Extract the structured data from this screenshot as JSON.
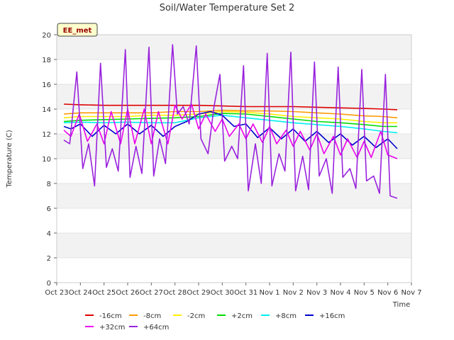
{
  "chart_data": {
    "type": "line",
    "title": "Soil/Water Temperature Set 2",
    "xlabel": "Time",
    "ylabel": "Temperature (C)",
    "ylim": [
      0,
      20
    ],
    "yticks": [
      0,
      2,
      4,
      6,
      8,
      10,
      12,
      14,
      16,
      18,
      20
    ],
    "xlim": [
      0,
      15
    ],
    "xtick_labels": [
      "Oct 23",
      "Oct 24",
      "Oct 25",
      "Oct 26",
      "Oct 27",
      "Oct 28",
      "Oct 29",
      "Oct 30",
      "Oct 31",
      "Nov 1",
      "Nov 2",
      "Nov 3",
      "Nov 4",
      "Nov 5",
      "Nov 6",
      "Nov 7"
    ],
    "badge": "EE_met",
    "background_bands": "alternating light grey",
    "legend_position": "bottom",
    "series": [
      {
        "name": "-16cm",
        "color": "#dd0000",
        "x": [
          0.3,
          1,
          2,
          3,
          4,
          5,
          6,
          7,
          8,
          9,
          10,
          11,
          12,
          13,
          13.8,
          14.4
        ],
        "y": [
          14.4,
          14.35,
          14.3,
          14.3,
          14.3,
          14.3,
          14.3,
          14.25,
          14.2,
          14.2,
          14.2,
          14.15,
          14.1,
          14.05,
          14.0,
          13.95
        ]
      },
      {
        "name": "-8cm",
        "color": "#ff9900",
        "x": [
          0.3,
          1,
          2,
          3,
          4,
          5,
          6,
          7,
          8,
          9,
          10,
          11,
          12,
          13,
          13.8,
          14.4
        ],
        "y": [
          13.6,
          13.7,
          13.7,
          13.7,
          13.7,
          13.8,
          13.8,
          13.9,
          13.85,
          13.85,
          13.8,
          13.7,
          13.6,
          13.45,
          13.4,
          13.3
        ]
      },
      {
        "name": "-2cm",
        "color": "#ffee00",
        "x": [
          0.3,
          1,
          2,
          3,
          4,
          5,
          6,
          7,
          8,
          9,
          10,
          11,
          12,
          13,
          13.8,
          14.4
        ],
        "y": [
          13.3,
          13.4,
          13.4,
          13.4,
          13.5,
          13.5,
          13.6,
          13.8,
          13.75,
          13.6,
          13.4,
          13.3,
          13.2,
          13.0,
          12.9,
          12.9
        ]
      },
      {
        "name": "+2cm",
        "color": "#00dd00",
        "x": [
          0.3,
          1,
          2,
          3,
          4,
          5,
          6,
          7,
          8,
          9,
          10,
          11,
          12,
          13,
          13.8,
          14.4
        ],
        "y": [
          13.0,
          13.1,
          13.15,
          13.2,
          13.25,
          13.3,
          13.4,
          13.65,
          13.6,
          13.4,
          13.2,
          13.0,
          12.9,
          12.75,
          12.6,
          12.6
        ]
      },
      {
        "name": "+8cm",
        "color": "#00eeee",
        "x": [
          0.3,
          1,
          2,
          3,
          4,
          5,
          6,
          7,
          8,
          9,
          10,
          11,
          12,
          13,
          13.8,
          14.4
        ],
        "y": [
          12.9,
          12.95,
          12.9,
          12.95,
          12.9,
          12.9,
          13.3,
          13.5,
          13.3,
          13.1,
          12.9,
          12.75,
          12.6,
          12.4,
          12.2,
          12.1
        ]
      },
      {
        "name": "+16cm",
        "color": "#0000cc",
        "x": [
          0.3,
          0.6,
          1,
          1.5,
          2,
          2.5,
          3,
          3.5,
          4,
          4.5,
          5,
          5.5,
          6,
          6.5,
          7,
          7.5,
          8,
          8.5,
          9,
          9.5,
          10,
          10.5,
          11,
          11.5,
          12,
          12.5,
          13,
          13.5,
          14,
          14.4
        ],
        "y": [
          12.6,
          12.4,
          12.8,
          11.8,
          12.7,
          12.0,
          12.8,
          12.0,
          12.7,
          11.8,
          12.6,
          13.0,
          13.6,
          13.8,
          13.5,
          12.6,
          12.8,
          11.7,
          12.5,
          11.6,
          12.4,
          11.4,
          12.2,
          11.3,
          12.0,
          11.1,
          11.8,
          10.9,
          11.6,
          10.8
        ]
      },
      {
        "name": "+32cm",
        "color": "#ee00ee",
        "x": [
          0.3,
          0.6,
          0.95,
          1.3,
          1.7,
          2.0,
          2.3,
          2.7,
          3.0,
          3.3,
          3.7,
          4.0,
          4.3,
          4.7,
          5.0,
          5.3,
          5.7,
          6.0,
          6.3,
          6.7,
          7.0,
          7.3,
          7.7,
          8.0,
          8.3,
          8.7,
          9.0,
          9.3,
          9.7,
          10.0,
          10.3,
          10.7,
          11.0,
          11.3,
          11.7,
          12.0,
          12.3,
          12.7,
          13.0,
          13.3,
          13.7,
          14.0,
          14.4
        ],
        "y": [
          12.3,
          11.8,
          13.6,
          11.4,
          12.8,
          11.2,
          13.8,
          11.2,
          14.0,
          11.2,
          14.0,
          11.2,
          13.8,
          11.2,
          14.3,
          13.2,
          14.4,
          12.4,
          13.6,
          12.2,
          13.2,
          11.8,
          12.8,
          11.6,
          12.8,
          11.3,
          12.6,
          11.2,
          12.3,
          11.0,
          12.2,
          10.7,
          12.0,
          10.4,
          11.8,
          10.3,
          11.6,
          10.1,
          11.4,
          10.1,
          12.2,
          10.3,
          10.0
        ]
      },
      {
        "name": "+64cm",
        "color": "#9922dd",
        "x": [
          0.3,
          0.55,
          0.85,
          1.1,
          1.35,
          1.6,
          1.85,
          2.1,
          2.35,
          2.6,
          2.9,
          3.1,
          3.35,
          3.6,
          3.9,
          4.1,
          4.35,
          4.6,
          4.9,
          5.1,
          5.35,
          5.6,
          5.9,
          6.1,
          6.4,
          6.65,
          6.9,
          7.1,
          7.4,
          7.65,
          7.9,
          8.1,
          8.4,
          8.65,
          8.9,
          9.1,
          9.4,
          9.65,
          9.9,
          10.1,
          10.4,
          10.65,
          10.9,
          11.1,
          11.4,
          11.65,
          11.9,
          12.1,
          12.4,
          12.65,
          12.9,
          13.1,
          13.4,
          13.65,
          13.9,
          14.1,
          14.4
        ],
        "y": [
          11.5,
          11.2,
          17.0,
          9.2,
          11.2,
          7.8,
          17.7,
          9.3,
          10.8,
          9.0,
          18.8,
          8.5,
          11.0,
          8.8,
          19.0,
          8.6,
          11.6,
          9.6,
          19.2,
          13.6,
          14.2,
          12.8,
          19.1,
          11.6,
          10.4,
          14.2,
          16.8,
          9.8,
          11.0,
          10.0,
          17.5,
          7.4,
          11.2,
          8.0,
          18.5,
          7.8,
          10.4,
          9.0,
          18.6,
          7.4,
          10.2,
          7.5,
          17.8,
          8.6,
          10.0,
          7.2,
          17.4,
          8.5,
          9.2,
          7.6,
          17.2,
          8.2,
          8.6,
          7.2,
          16.8,
          7.0,
          6.8
        ]
      }
    ]
  }
}
